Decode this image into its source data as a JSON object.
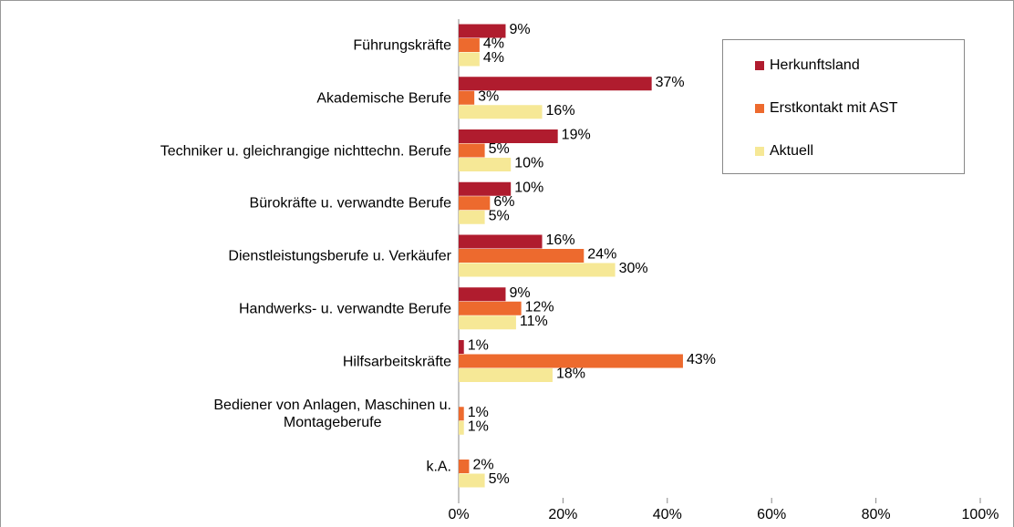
{
  "chart_data": {
    "type": "bar",
    "orientation": "horizontal",
    "categories": [
      "Führungskräfte",
      "Akademische Berufe",
      "Techniker u. gleichrangige nichttechn. Berufe",
      "Bürokräfte u. verwandte Berufe",
      "Dienstleistungsberufe u. Verkäufer",
      "Handwerks- u. verwandte Berufe",
      "Hilfsarbeitskräfte",
      "Bediener von Anlagen, Maschinen u.\nMontageberufe",
      "k.A."
    ],
    "series": [
      {
        "name": "Herkunftsland",
        "color": "#b01c2e",
        "values": [
          9,
          37,
          19,
          10,
          16,
          9,
          1,
          null,
          null
        ],
        "value_labels": [
          "9%",
          "37%",
          "19%",
          "10%",
          "16%",
          "9%",
          "1%",
          null,
          null
        ]
      },
      {
        "name": "Erstkontakt mit AST",
        "color": "#ed6a2e",
        "values": [
          4,
          3,
          5,
          6,
          24,
          12,
          43,
          1,
          2
        ],
        "value_labels": [
          "4%",
          "3%",
          "5%",
          "6%",
          "24%",
          "12%",
          "43%",
          "1%",
          "2%"
        ]
      },
      {
        "name": "Aktuell",
        "color": "#f6e896",
        "values": [
          4,
          16,
          10,
          5,
          30,
          11,
          18,
          1,
          5
        ],
        "value_labels": [
          "4%",
          "16%",
          "10%",
          "5%",
          "30%",
          "11%",
          "18%",
          "1%",
          "5%"
        ]
      }
    ],
    "xlim": [
      0,
      100
    ],
    "xticks": [
      {
        "value": 0,
        "label": "0%"
      },
      {
        "value": 20,
        "label": "20%"
      },
      {
        "value": 40,
        "label": "40%"
      },
      {
        "value": 60,
        "label": "60%"
      },
      {
        "value": 80,
        "label": "80%"
      },
      {
        "value": 100,
        "label": "100%"
      }
    ],
    "legend": "upper right"
  }
}
